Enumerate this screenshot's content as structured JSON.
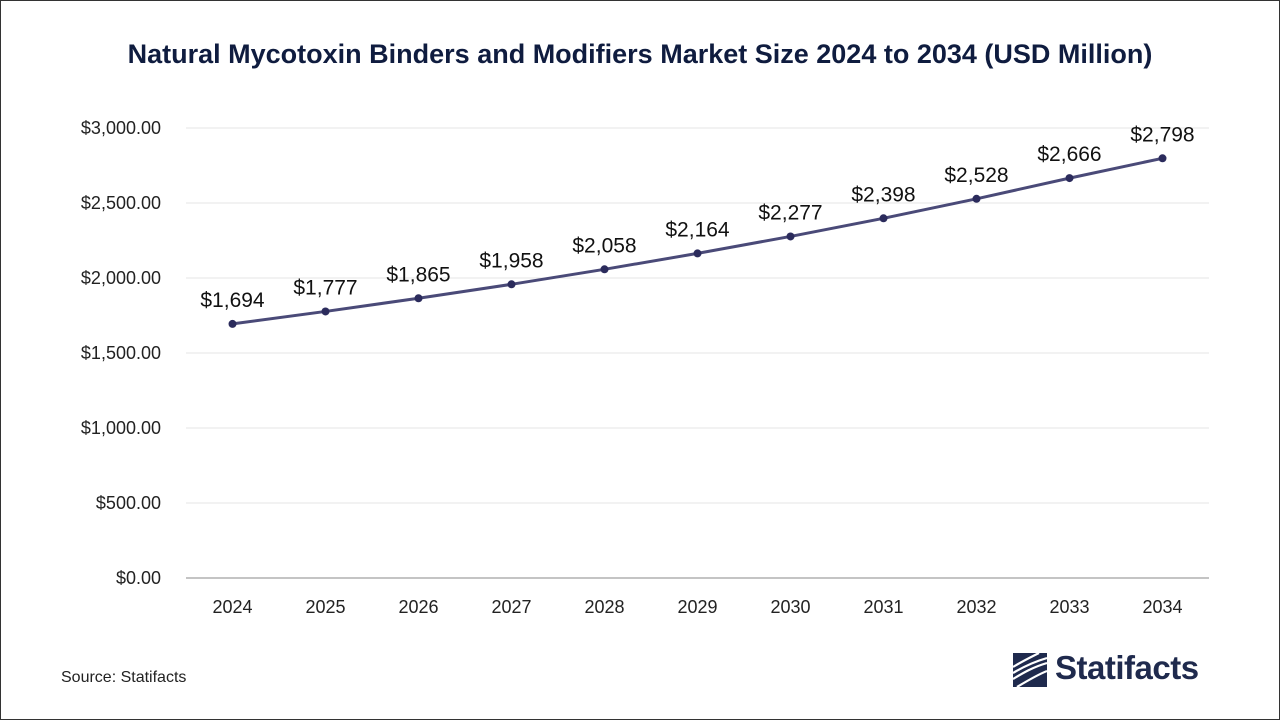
{
  "chart_data": {
    "type": "line",
    "title": "Natural Mycotoxin Binders and Modifiers Market Size 2024 to 2034 (USD Million)",
    "xlabel": "",
    "ylabel": "",
    "categories": [
      "2024",
      "2025",
      "2026",
      "2027",
      "2028",
      "2029",
      "2030",
      "2031",
      "2032",
      "2033",
      "2034"
    ],
    "series": [
      {
        "values": [
          1694,
          1777,
          1865,
          1958,
          2058,
          2164,
          2277,
          2398,
          2528,
          2666,
          2798
        ]
      }
    ],
    "data_labels": [
      "$1,694",
      "$1,777",
      "$1,865",
      "$1,958",
      "$2,058",
      "$2,164",
      "$2,277",
      "$2,398",
      "$2,528",
      "$2,666",
      "$2,798"
    ],
    "ylim": [
      0,
      3000
    ],
    "yticks": [
      0,
      500,
      1000,
      1500,
      2000,
      2500,
      3000
    ],
    "ytick_labels": [
      "$0.00",
      "$500.00",
      "$1,000.00",
      "$1,500.00",
      "$2,000.00",
      "$2,500.00",
      "$3,000.00"
    ],
    "grid": true,
    "legend": "none",
    "line_color": "#4a4a78",
    "marker_color": "#2b2b5c"
  },
  "source": "Source: Statifacts",
  "brand": {
    "name": "Statifacts",
    "color": "#1f2a4d"
  }
}
